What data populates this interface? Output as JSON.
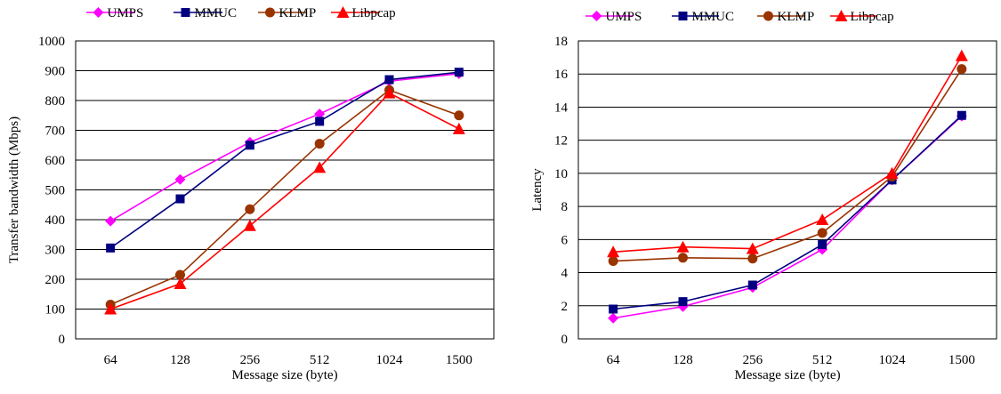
{
  "chart_data": [
    {
      "type": "line",
      "title": "",
      "xlabel": "Message size (byte)",
      "ylabel": "Transfer bandwidth (Mbps)",
      "categories": [
        "64",
        "128",
        "256",
        "512",
        "1024",
        "1500"
      ],
      "ylim": [
        0,
        1000
      ],
      "yticks": [
        "0",
        "100",
        "200",
        "300",
        "400",
        "500",
        "600",
        "700",
        "800",
        "900",
        "1000"
      ],
      "grid": true,
      "legend_position": "top",
      "series": [
        {
          "name": "UMPS",
          "color": "#ff00ff",
          "marker": "diamond",
          "values": [
            395,
            535,
            660,
            755,
            865,
            890
          ]
        },
        {
          "name": "MMUC",
          "color": "#000080",
          "marker": "square",
          "values": [
            305,
            470,
            650,
            730,
            870,
            895
          ]
        },
        {
          "name": "KLMP",
          "color": "#993300",
          "marker": "circle",
          "values": [
            115,
            215,
            435,
            655,
            835,
            750
          ]
        },
        {
          "name": "Libpcap",
          "color": "#ff0000",
          "marker": "triangle",
          "values": [
            100,
            185,
            380,
            575,
            825,
            705
          ]
        }
      ]
    },
    {
      "type": "line",
      "title": "",
      "xlabel": "Message size (byte)",
      "ylabel": "Latency",
      "categories": [
        "64",
        "128",
        "256",
        "512",
        "1024",
        "1500"
      ],
      "ylim": [
        0,
        18
      ],
      "yticks": [
        "0",
        "2",
        "4",
        "6",
        "8",
        "10",
        "12",
        "14",
        "16",
        "18"
      ],
      "grid": true,
      "legend_position": "top",
      "series": [
        {
          "name": "UMPS",
          "color": "#ff00ff",
          "marker": "diamond",
          "values": [
            1.25,
            1.95,
            3.1,
            5.4,
            9.6,
            13.45
          ]
        },
        {
          "name": "MMUC",
          "color": "#000080",
          "marker": "square",
          "values": [
            1.8,
            2.25,
            3.25,
            5.7,
            9.6,
            13.5
          ]
        },
        {
          "name": "KLMP",
          "color": "#993300",
          "marker": "circle",
          "values": [
            4.7,
            4.9,
            4.85,
            6.4,
            9.8,
            16.3
          ]
        },
        {
          "name": "Libpcap",
          "color": "#ff0000",
          "marker": "triangle",
          "values": [
            5.25,
            5.55,
            5.45,
            7.2,
            10.0,
            17.1
          ]
        }
      ]
    }
  ]
}
